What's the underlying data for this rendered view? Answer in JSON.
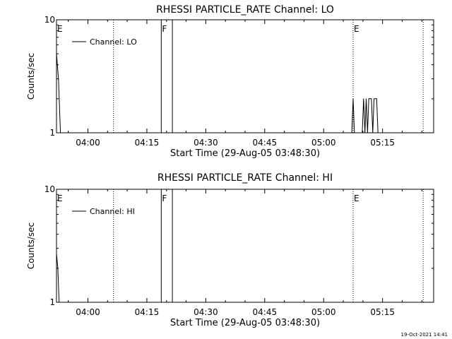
{
  "timestamp": "19-Oct-2021 14:41",
  "colors": {
    "background": "#ffffff",
    "foreground": "#000000"
  },
  "chart_data": [
    {
      "type": "line",
      "title": "RHESSI PARTICLE_RATE Channel: LO",
      "xlabel": "Start Time (29-Aug-05 03:48:30)",
      "ylabel": "Counts/sec",
      "y_scale": "log",
      "ylim": [
        1,
        10
      ],
      "y_ticks": [
        "1",
        "10"
      ],
      "xlim": [
        "03:52:00",
        "05:28:00"
      ],
      "x_ticks": [
        "04:00",
        "04:15",
        "04:30",
        "04:45",
        "05:00",
        "05:15"
      ],
      "legend": {
        "label": "Channel: LO",
        "placement": "top-left"
      },
      "markers": [
        {
          "label": "E",
          "time": "03:52:00",
          "style": "dotted"
        },
        {
          "label": "",
          "time": "04:06:30",
          "style": "dotted"
        },
        {
          "label": "F",
          "time": "04:18:40",
          "style": "solid"
        },
        {
          "label": "",
          "time": "04:21:30",
          "style": "solid"
        },
        {
          "label": "E",
          "time": "05:07:30",
          "style": "dotted"
        },
        {
          "label": "",
          "time": "05:25:20",
          "style": "dotted"
        }
      ],
      "series": [
        {
          "values": [
            {
              "t": "03:52:00",
              "y": 5
            },
            {
              "t": "03:52:30",
              "y": 3
            },
            {
              "t": "03:53:00",
              "y": 1
            }
          ]
        },
        {
          "values": [
            {
              "t": "05:07:10",
              "y": 1
            },
            {
              "t": "05:07:30",
              "y": 2
            },
            {
              "t": "05:07:50",
              "y": 1
            },
            {
              "t": "05:09:50",
              "y": 1
            },
            {
              "t": "05:10:10",
              "y": 2
            },
            {
              "t": "05:10:30",
              "y": 1
            },
            {
              "t": "05:10:50",
              "y": 2
            },
            {
              "t": "05:11:10",
              "y": 1
            },
            {
              "t": "05:11:30",
              "y": 2
            },
            {
              "t": "05:12:10",
              "y": 2
            },
            {
              "t": "05:12:30",
              "y": 1
            },
            {
              "t": "05:12:50",
              "y": 2
            },
            {
              "t": "05:13:30",
              "y": 2
            },
            {
              "t": "05:13:50",
              "y": 1
            },
            {
              "t": "05:14:00",
              "y": 1
            }
          ]
        }
      ]
    },
    {
      "type": "line",
      "title": "RHESSI PARTICLE_RATE Channel: HI",
      "xlabel": "Start Time (29-Aug-05 03:48:30)",
      "ylabel": "Counts/sec",
      "y_scale": "log",
      "ylim": [
        1,
        10
      ],
      "y_ticks": [
        "1",
        "10"
      ],
      "xlim": [
        "03:52:00",
        "05:28:00"
      ],
      "x_ticks": [
        "04:00",
        "04:15",
        "04:30",
        "04:45",
        "05:00",
        "05:15"
      ],
      "legend": {
        "label": "Channel: HI",
        "placement": "top-left"
      },
      "markers": [
        {
          "label": "E",
          "time": "03:52:00",
          "style": "dotted"
        },
        {
          "label": "",
          "time": "04:06:30",
          "style": "dotted"
        },
        {
          "label": "F",
          "time": "04:18:40",
          "style": "solid"
        },
        {
          "label": "",
          "time": "04:21:30",
          "style": "solid"
        },
        {
          "label": "E",
          "time": "05:07:30",
          "style": "dotted"
        },
        {
          "label": "",
          "time": "05:25:20",
          "style": "dotted"
        }
      ],
      "series": [
        {
          "values": [
            {
              "t": "03:52:00",
              "y": 2.7
            },
            {
              "t": "03:52:20",
              "y": 2
            },
            {
              "t": "03:52:40",
              "y": 1
            }
          ]
        }
      ]
    }
  ]
}
